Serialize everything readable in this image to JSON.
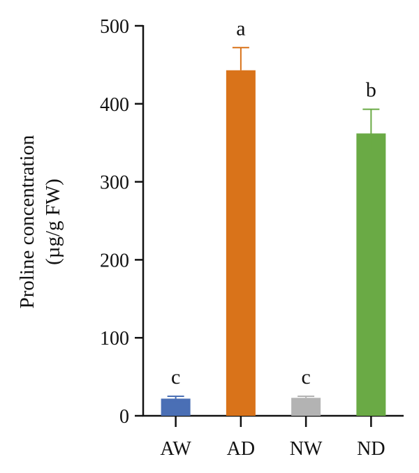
{
  "chart_data": {
    "type": "bar",
    "categories": [
      "AW",
      "AD",
      "NW",
      "ND"
    ],
    "values": [
      22,
      443,
      23,
      362
    ],
    "errors_plus": [
      3,
      29,
      2,
      31
    ],
    "errors_minus": [
      3,
      0,
      0,
      23
    ],
    "significance": [
      "c",
      "a",
      "c",
      "b"
    ],
    "colors": [
      "#4a6fb5",
      "#d9731a",
      "#b3b3b3",
      "#6aaa45"
    ],
    "ylabel_line1": "Proline concentration",
    "ylabel_line2": "(µg/g FW)",
    "xlabel": "",
    "ylim": [
      0,
      500
    ],
    "yticks": [
      0,
      100,
      200,
      300,
      400,
      500
    ],
    "ytick_labels": [
      "0",
      "100",
      "200",
      "300",
      "400",
      "500"
    ],
    "grid": false
  }
}
